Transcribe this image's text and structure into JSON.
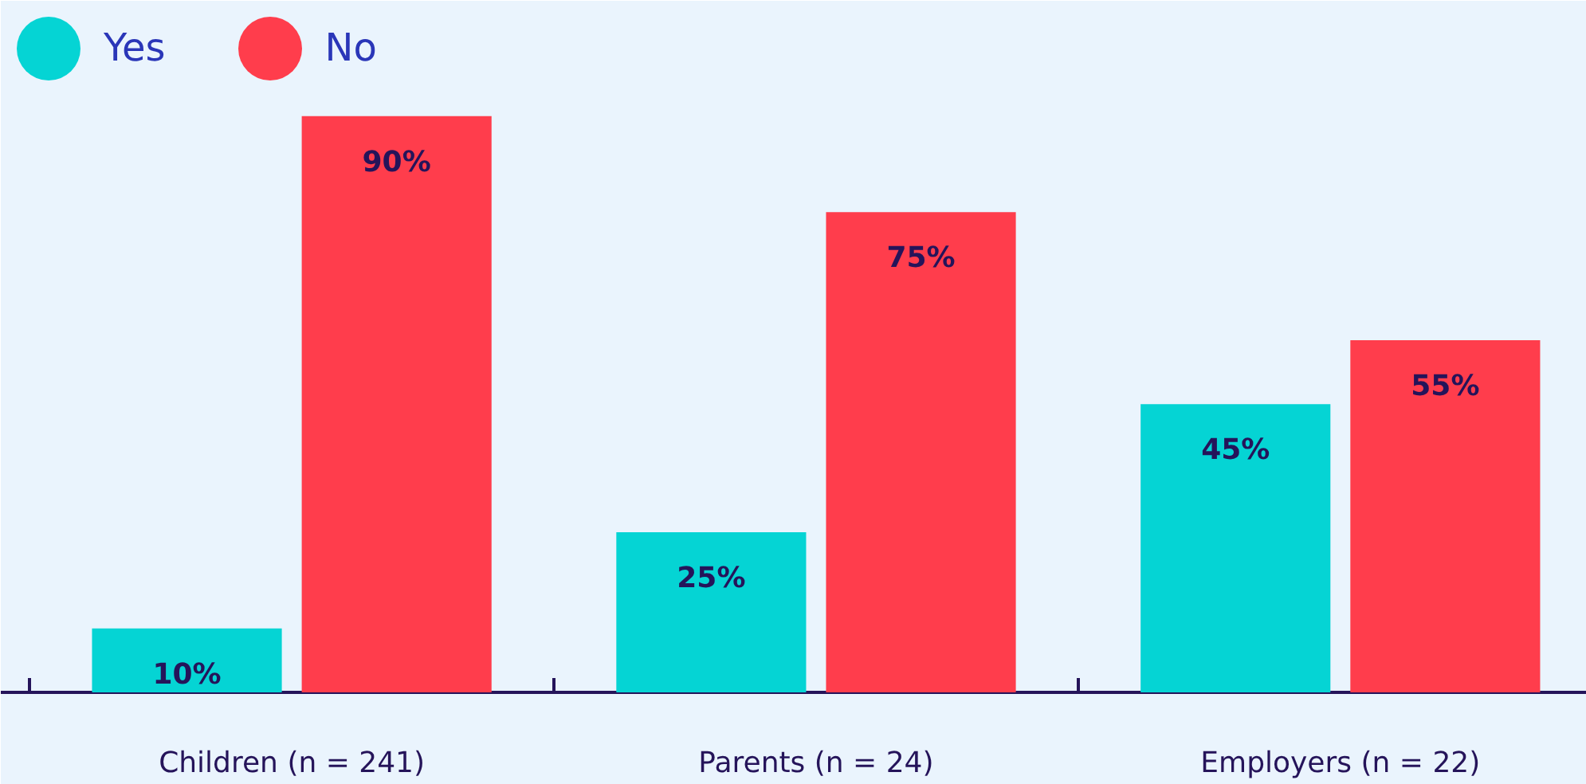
{
  "chart_data": {
    "type": "bar",
    "categories": [
      "Children (n = 241)",
      "Parents (n = 24)",
      "Employers (n = 22)"
    ],
    "series": [
      {
        "name": "Yes",
        "color": "#05d4d4",
        "values": [
          10,
          25,
          45
        ],
        "value_labels": [
          "10%",
          "25%",
          "45%"
        ]
      },
      {
        "name": "No",
        "color": "#ff3d4c",
        "values": [
          90,
          75,
          55
        ],
        "value_labels": [
          "90%",
          "75%",
          "55%"
        ]
      }
    ],
    "legend": "top left"
  }
}
